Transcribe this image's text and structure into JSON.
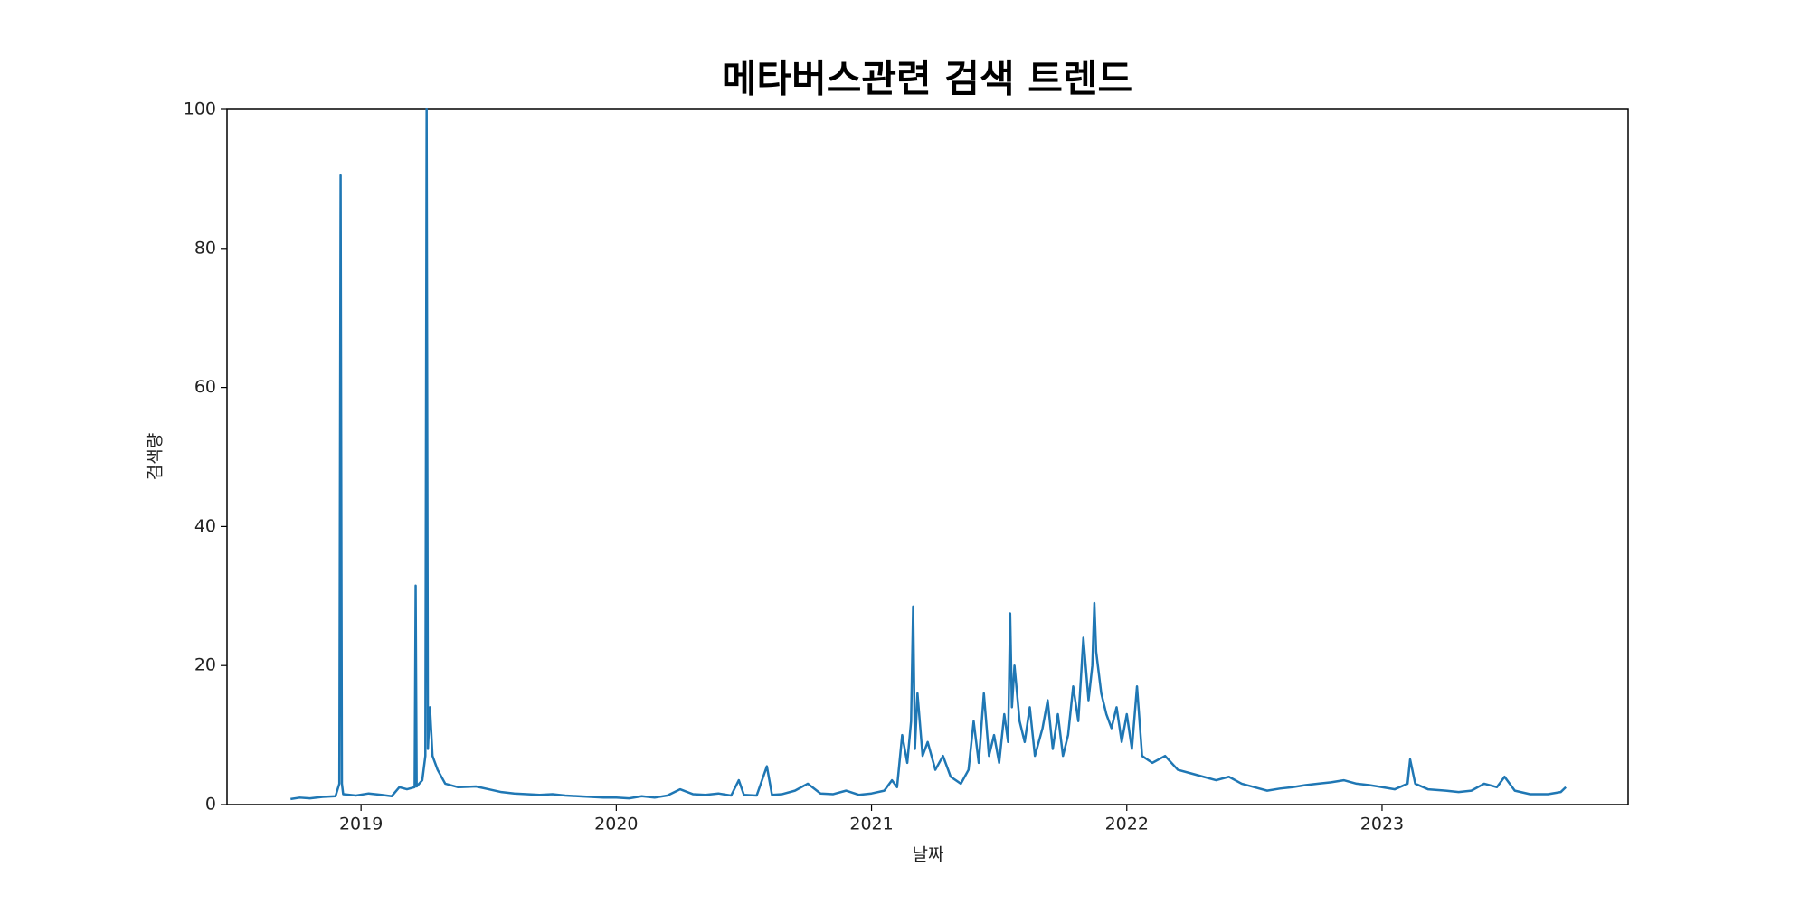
{
  "chart_data": {
    "type": "line",
    "title": "메타버스관련 검색 트렌드",
    "xlabel": "날짜",
    "ylabel": "검색량",
    "color": "#1f77b4",
    "xlim": [
      2018.475,
      2023.964
    ],
    "xticks": [
      2019,
      2020,
      2021,
      2022,
      2023
    ],
    "ylim": [
      0,
      100
    ],
    "yticks": [
      0,
      20,
      40,
      60,
      80,
      100
    ],
    "grid": false,
    "x": [
      2018.724,
      2018.76,
      2018.8,
      2018.85,
      2018.9,
      2018.915,
      2018.92,
      2018.925,
      2018.93,
      2018.98,
      2019.03,
      2019.08,
      2019.12,
      2019.15,
      2019.18,
      2019.21,
      2019.214,
      2019.218,
      2019.24,
      2019.252,
      2019.257,
      2019.262,
      2019.27,
      2019.28,
      2019.3,
      2019.33,
      2019.38,
      2019.45,
      2019.5,
      2019.55,
      2019.6,
      2019.65,
      2019.7,
      2019.75,
      2019.8,
      2019.85,
      2019.9,
      2019.95,
      2020.0,
      2020.05,
      2020.1,
      2020.15,
      2020.2,
      2020.25,
      2020.3,
      2020.35,
      2020.4,
      2020.45,
      2020.48,
      2020.5,
      2020.55,
      2020.59,
      2020.61,
      2020.65,
      2020.7,
      2020.75,
      2020.8,
      2020.85,
      2020.9,
      2020.95,
      2021.0,
      2021.05,
      2021.08,
      2021.1,
      2021.12,
      2021.14,
      2021.155,
      2021.163,
      2021.17,
      2021.18,
      2021.2,
      2021.22,
      2021.25,
      2021.28,
      2021.31,
      2021.35,
      2021.38,
      2021.4,
      2021.42,
      2021.44,
      2021.46,
      2021.48,
      2021.5,
      2021.52,
      2021.535,
      2021.543,
      2021.55,
      2021.56,
      2021.58,
      2021.6,
      2021.62,
      2021.64,
      2021.67,
      2021.69,
      2021.71,
      2021.73,
      2021.75,
      2021.77,
      2021.79,
      2021.81,
      2021.83,
      2021.85,
      2021.865,
      2021.873,
      2021.88,
      2021.9,
      2021.92,
      2021.94,
      2021.96,
      2021.98,
      2022.0,
      2022.02,
      2022.04,
      2022.06,
      2022.1,
      2022.15,
      2022.2,
      2022.25,
      2022.3,
      2022.35,
      2022.4,
      2022.45,
      2022.5,
      2022.55,
      2022.6,
      2022.65,
      2022.7,
      2022.75,
      2022.8,
      2022.85,
      2022.9,
      2022.95,
      2023.0,
      2023.05,
      2023.1,
      2023.11,
      2023.13,
      2023.18,
      2023.25,
      2023.3,
      2023.35,
      2023.4,
      2023.45,
      2023.48,
      2023.52,
      2023.58,
      2023.65,
      2023.7,
      2023.72
    ],
    "values": [
      0.8,
      1.0,
      0.9,
      1.1,
      1.2,
      3,
      90.5,
      3,
      1.5,
      1.3,
      1.6,
      1.4,
      1.2,
      2.5,
      2.2,
      2.5,
      31.5,
      2.6,
      3.5,
      7,
      100,
      8,
      14,
      7,
      5,
      3,
      2.5,
      2.6,
      2.2,
      1.8,
      1.6,
      1.5,
      1.4,
      1.5,
      1.3,
      1.2,
      1.1,
      1.0,
      1.0,
      0.9,
      1.2,
      1.0,
      1.3,
      2.2,
      1.5,
      1.4,
      1.6,
      1.3,
      3.5,
      1.4,
      1.3,
      5.5,
      1.4,
      1.5,
      2.0,
      3.0,
      1.6,
      1.5,
      2.0,
      1.4,
      1.6,
      2.0,
      3.5,
      2.5,
      10,
      6,
      12,
      28.5,
      8,
      16,
      7,
      9,
      5,
      7,
      4,
      3,
      5,
      12,
      6,
      16,
      7,
      10,
      6,
      13,
      9,
      27.5,
      14,
      20,
      12,
      9,
      14,
      7,
      11,
      15,
      8,
      13,
      7,
      10,
      17,
      12,
      24,
      15,
      20,
      29,
      22,
      16,
      13,
      11,
      14,
      9,
      13,
      8,
      17,
      7,
      6,
      7,
      5,
      4.5,
      4,
      3.5,
      4,
      3,
      2.5,
      2,
      2.3,
      2.5,
      2.8,
      3,
      3.2,
      3.5,
      3,
      2.8,
      2.5,
      2.2,
      3,
      6.5,
      3,
      2.2,
      2,
      1.8,
      2,
      3,
      2.5,
      4,
      2,
      1.5,
      1.5,
      1.8,
      2.5
    ]
  }
}
